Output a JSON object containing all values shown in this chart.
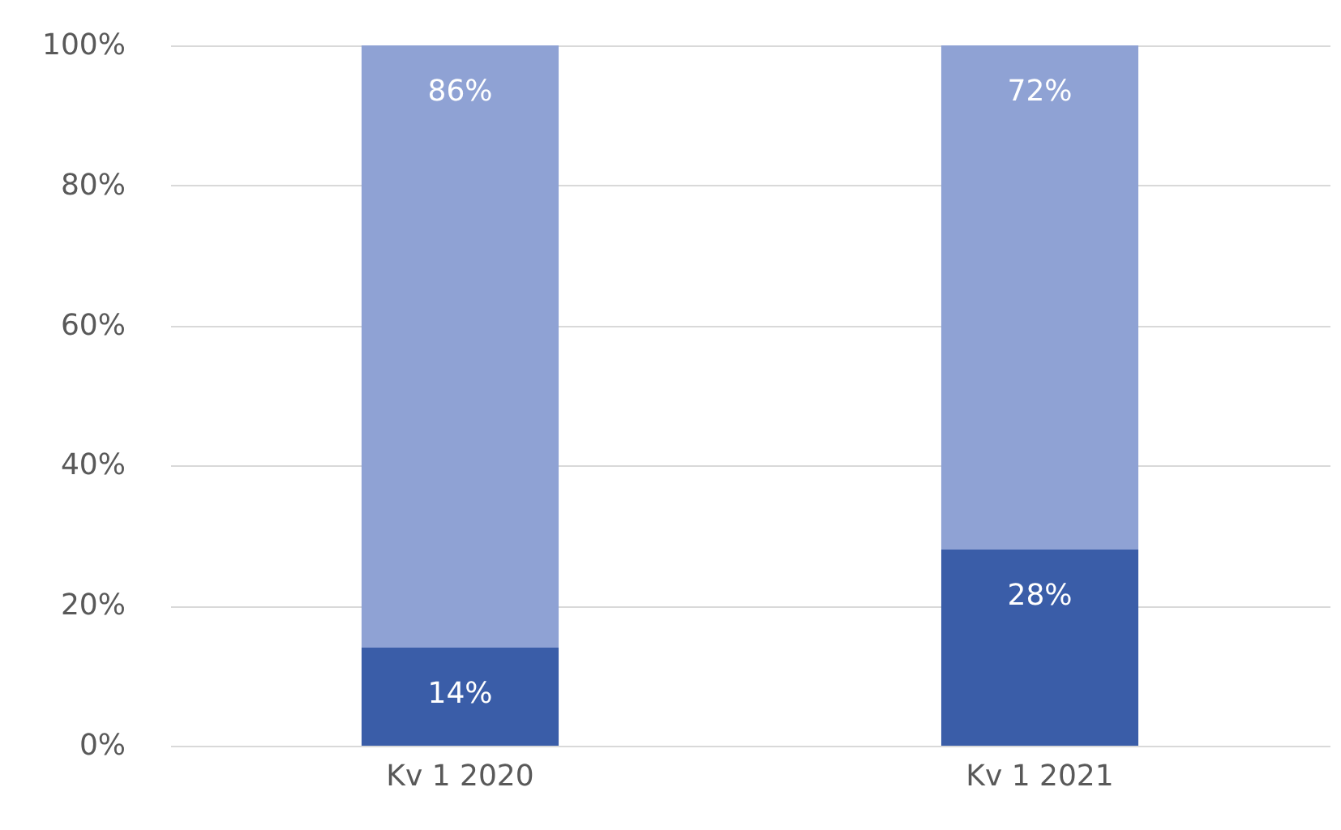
{
  "chart_data": {
    "type": "bar",
    "stacked": true,
    "categories": [
      "Kv 1 2020",
      "Kv 1 2021"
    ],
    "series": [
      {
        "color": "#3a5da8",
        "values": [
          14,
          28
        ],
        "value_labels": [
          "14%",
          "28%"
        ]
      },
      {
        "color": "#8fa2d4",
        "values": [
          86,
          72
        ],
        "value_labels": [
          "86%",
          "72%"
        ]
      }
    ],
    "ylim": [
      0,
      100
    ],
    "yticks": [
      {
        "value": 0,
        "label": "0%"
      },
      {
        "value": 20,
        "label": "20%"
      },
      {
        "value": 40,
        "label": "40%"
      },
      {
        "value": 60,
        "label": "60%"
      },
      {
        "value": 80,
        "label": "80%"
      },
      {
        "value": 100,
        "label": "100%"
      }
    ],
    "grid": "y"
  }
}
